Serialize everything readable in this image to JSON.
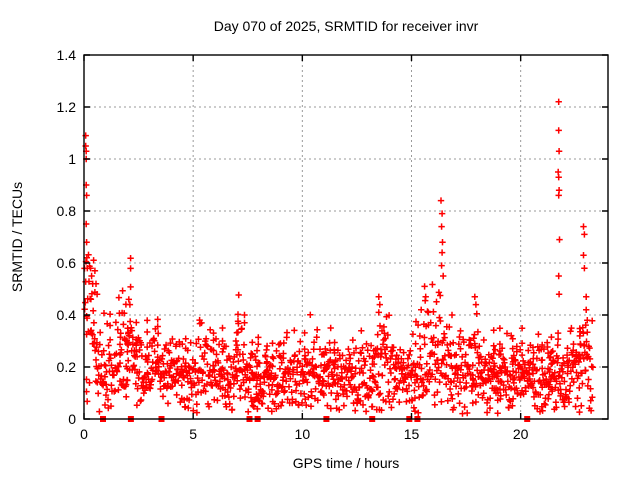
{
  "chart_data": {
    "type": "scatter",
    "title": "Day 070 of 2025, SRMTID for receiver invr",
    "xlabel": "GPS time / hours",
    "ylabel": "SRMTID / TECUs",
    "xlim": [
      0,
      24
    ],
    "ylim": [
      0,
      1.4
    ],
    "xticks": [
      {
        "v": 0,
        "label": "0"
      },
      {
        "v": 5,
        "label": "5"
      },
      {
        "v": 10,
        "label": "10"
      },
      {
        "v": 15,
        "label": "15"
      },
      {
        "v": 20,
        "label": "20"
      }
    ],
    "yticks": [
      {
        "v": 0,
        "label": "0"
      },
      {
        "v": 0.2,
        "label": "0.2"
      },
      {
        "v": 0.4,
        "label": "0.4"
      },
      {
        "v": 0.6,
        "label": "0.6"
      },
      {
        "v": 0.8,
        "label": "0.8"
      },
      {
        "v": 1,
        "label": "1"
      },
      {
        "v": 1.2,
        "label": "1.2"
      },
      {
        "v": 1.4,
        "label": "1.4"
      }
    ],
    "grid": true,
    "legend": "none",
    "marker": {
      "shape": "plus",
      "size": 7,
      "color": "#ff0000"
    },
    "zero_marker": {
      "shape": "filled-square",
      "size": 7,
      "color": "#ff0000"
    },
    "colors": {
      "points": "#ff0000",
      "grid": "#9a9a9a",
      "axis": "#000000",
      "background": "#ffffff",
      "text": "#000000"
    },
    "band": {
      "comment": "dense noisy band of 30s SRMTID samples; mean/spread control points vs GPS hour",
      "control": [
        {
          "t": 0.05,
          "mean": 0.45,
          "spread": 0.17
        },
        {
          "t": 0.4,
          "mean": 0.38,
          "spread": 0.13
        },
        {
          "t": 0.8,
          "mean": 0.18,
          "spread": 0.09
        },
        {
          "t": 1.5,
          "mean": 0.22,
          "spread": 0.1
        },
        {
          "t": 2.1,
          "mean": 0.28,
          "spread": 0.11
        },
        {
          "t": 2.6,
          "mean": 0.18,
          "spread": 0.07
        },
        {
          "t": 3.5,
          "mean": 0.22,
          "spread": 0.08
        },
        {
          "t": 4.5,
          "mean": 0.17,
          "spread": 0.07
        },
        {
          "t": 5.5,
          "mean": 0.2,
          "spread": 0.08
        },
        {
          "t": 6.5,
          "mean": 0.15,
          "spread": 0.06
        },
        {
          "t": 7.2,
          "mean": 0.22,
          "spread": 0.1
        },
        {
          "t": 8.0,
          "mean": 0.12,
          "spread": 0.07
        },
        {
          "t": 9.0,
          "mean": 0.15,
          "spread": 0.07
        },
        {
          "t": 9.8,
          "mean": 0.18,
          "spread": 0.08
        },
        {
          "t": 10.8,
          "mean": 0.15,
          "spread": 0.06
        },
        {
          "t": 11.5,
          "mean": 0.17,
          "spread": 0.08
        },
        {
          "t": 12.5,
          "mean": 0.15,
          "spread": 0.06
        },
        {
          "t": 13.5,
          "mean": 0.2,
          "spread": 0.1
        },
        {
          "t": 14.5,
          "mean": 0.17,
          "spread": 0.08
        },
        {
          "t": 15.6,
          "mean": 0.22,
          "spread": 0.11
        },
        {
          "t": 16.3,
          "mean": 0.25,
          "spread": 0.13
        },
        {
          "t": 17.0,
          "mean": 0.18,
          "spread": 0.08
        },
        {
          "t": 17.9,
          "mean": 0.2,
          "spread": 0.1
        },
        {
          "t": 18.8,
          "mean": 0.15,
          "spread": 0.06
        },
        {
          "t": 19.5,
          "mean": 0.16,
          "spread": 0.07
        },
        {
          "t": 20.5,
          "mean": 0.15,
          "spread": 0.06
        },
        {
          "t": 21.3,
          "mean": 0.17,
          "spread": 0.08
        },
        {
          "t": 22.0,
          "mean": 0.15,
          "spread": 0.07
        },
        {
          "t": 22.8,
          "mean": 0.2,
          "spread": 0.1
        },
        {
          "t": 23.3,
          "mean": 0.18,
          "spread": 0.09
        }
      ],
      "count": 1350,
      "seed": 42,
      "t_min": 0.02,
      "t_max": 23.3,
      "y_min": 0.02
    },
    "outliers": [
      [
        0.08,
        1.09
      ],
      [
        0.08,
        1.05
      ],
      [
        0.1,
        1.03
      ],
      [
        0.1,
        1.0
      ],
      [
        0.1,
        0.9
      ],
      [
        0.12,
        0.86
      ],
      [
        0.1,
        0.75
      ],
      [
        0.12,
        0.68
      ],
      [
        0.13,
        0.62
      ],
      [
        0.15,
        0.58
      ],
      [
        0.3,
        0.58
      ],
      [
        0.35,
        0.55
      ],
      [
        0.4,
        0.52
      ],
      [
        0.5,
        0.57
      ],
      [
        0.55,
        0.52
      ],
      [
        0.6,
        0.48
      ],
      [
        2.05,
        0.46
      ],
      [
        2.1,
        0.44
      ],
      [
        7.35,
        0.4
      ],
      [
        7.35,
        0.37
      ],
      [
        11.3,
        0.35
      ],
      [
        13.5,
        0.47
      ],
      [
        13.55,
        0.44
      ],
      [
        13.5,
        0.41
      ],
      [
        15.6,
        0.51
      ],
      [
        15.65,
        0.47
      ],
      [
        16.35,
        0.84
      ],
      [
        16.4,
        0.79
      ],
      [
        16.38,
        0.74
      ],
      [
        16.42,
        0.68
      ],
      [
        16.4,
        0.64
      ],
      [
        16.38,
        0.59
      ],
      [
        16.45,
        0.55
      ],
      [
        17.9,
        0.47
      ],
      [
        17.95,
        0.44
      ],
      [
        21.74,
        1.22
      ],
      [
        21.74,
        1.11
      ],
      [
        21.76,
        1.03
      ],
      [
        21.72,
        0.95
      ],
      [
        21.74,
        0.93
      ],
      [
        21.76,
        0.88
      ],
      [
        21.74,
        0.86
      ],
      [
        21.78,
        0.69
      ],
      [
        21.74,
        0.55
      ],
      [
        21.76,
        0.48
      ],
      [
        22.88,
        0.74
      ],
      [
        22.92,
        0.71
      ],
      [
        22.88,
        0.63
      ],
      [
        22.92,
        0.58
      ],
      [
        23.0,
        0.47
      ],
      [
        23.0,
        0.42
      ],
      [
        23.05,
        0.38
      ]
    ],
    "zero_marker_hours": [
      0.87,
      2.15,
      3.55,
      7.58,
      7.95,
      11.1,
      13.2,
      14.9,
      15.27,
      20.3
    ]
  }
}
